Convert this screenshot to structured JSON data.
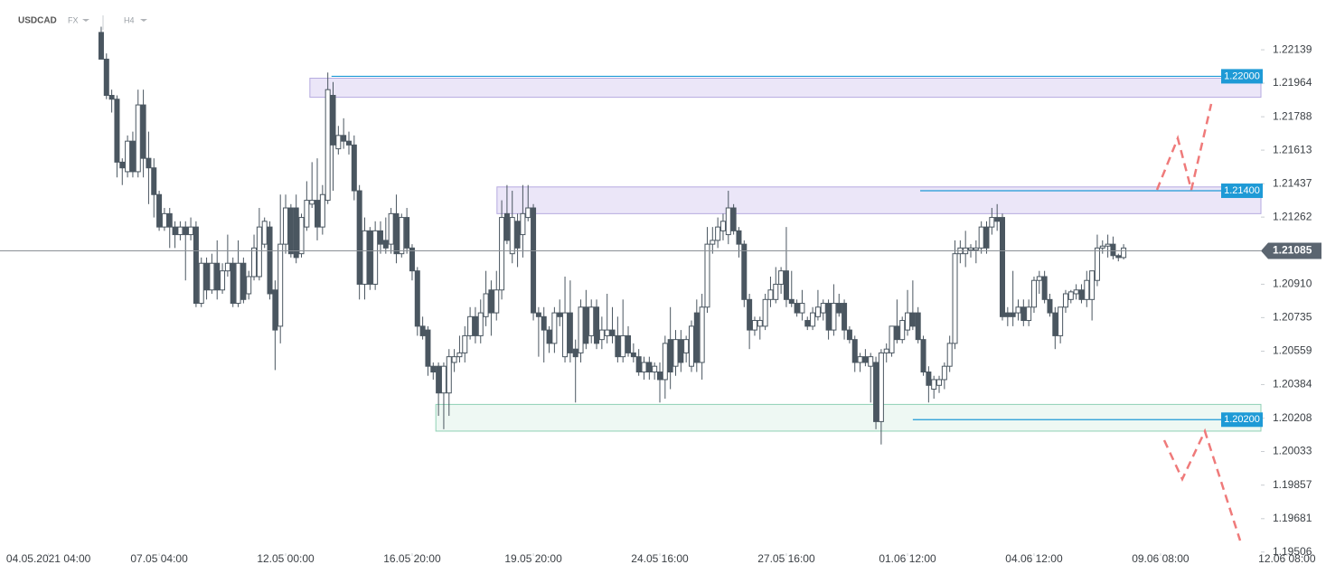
{
  "chart_data": {
    "type": "candlestick",
    "symbol": "USDCAD",
    "market": "FX",
    "timeframe": "H4",
    "up_color": "#ffffff",
    "down_color": "#4a5660",
    "wick_color": "#4a5660",
    "candles": [
      [
        1.2223,
        1.2226,
        1.2209,
        1.2209
      ],
      [
        1.2209,
        1.2212,
        1.2188,
        1.219
      ],
      [
        1.219,
        1.2193,
        1.2181,
        1.2188
      ],
      [
        1.2188,
        1.219,
        1.2147,
        1.2155
      ],
      [
        1.2155,
        1.2157,
        1.2143,
        1.2152
      ],
      [
        1.215,
        1.2169,
        1.2147,
        1.2166
      ],
      [
        1.2166,
        1.2171,
        1.2147,
        1.215
      ],
      [
        1.215,
        1.2193,
        1.2147,
        1.2185
      ],
      [
        1.2185,
        1.2193,
        1.2147,
        1.2157
      ],
      [
        1.2157,
        1.2171,
        1.2133,
        1.2152
      ],
      [
        1.2152,
        1.2157,
        1.2126,
        1.2138
      ],
      [
        1.2138,
        1.214,
        1.2119,
        1.2121
      ],
      [
        1.2121,
        1.2131,
        1.2119,
        1.2128
      ],
      [
        1.2128,
        1.2131,
        1.211,
        1.2121
      ],
      [
        1.2121,
        1.2124,
        1.211,
        1.2117
      ],
      [
        1.2117,
        1.2124,
        1.2114,
        1.2121
      ],
      [
        1.2121,
        1.2124,
        1.2093,
        1.2117
      ],
      [
        1.2117,
        1.2126,
        1.2114,
        1.2121
      ],
      [
        1.2121,
        1.2124,
        1.2079,
        1.2081
      ],
      [
        1.2081,
        1.2105,
        1.2079,
        1.2102
      ],
      [
        1.2102,
        1.2105,
        1.2083,
        1.2088
      ],
      [
        1.2088,
        1.2107,
        1.2086,
        1.2102
      ],
      [
        1.2102,
        1.2114,
        1.2083,
        1.2088
      ],
      [
        1.2088,
        1.2102,
        1.2086,
        1.2098
      ],
      [
        1.2098,
        1.2117,
        1.2095,
        1.2102
      ],
      [
        1.2102,
        1.2105,
        1.2079,
        1.2081
      ],
      [
        1.2081,
        1.2114,
        1.2079,
        1.2102
      ],
      [
        1.2102,
        1.2105,
        1.2081,
        1.2083
      ],
      [
        1.2086,
        1.2098,
        1.2083,
        1.2095
      ],
      [
        1.2095,
        1.2117,
        1.2093,
        1.211
      ],
      [
        1.2095,
        1.2131,
        1.2093,
        1.2121
      ],
      [
        1.2112,
        1.2126,
        1.211,
        1.2124
      ],
      [
        1.2121,
        1.2124,
        1.2083,
        1.2086
      ],
      [
        1.2088,
        1.2093,
        1.2046,
        1.2067
      ],
      [
        1.2069,
        1.2138,
        1.206,
        1.2112
      ],
      [
        1.2112,
        1.2138,
        1.2107,
        1.2131
      ],
      [
        1.2131,
        1.2133,
        1.2105,
        1.2107
      ],
      [
        1.2131,
        1.2138,
        1.2102,
        1.2105
      ],
      [
        1.2107,
        1.2128,
        1.2105,
        1.2126
      ],
      [
        1.2121,
        1.2145,
        1.2119,
        1.2135
      ],
      [
        1.2133,
        1.2155,
        1.2131,
        1.2135
      ],
      [
        1.2135,
        1.2157,
        1.2114,
        1.2121
      ],
      [
        1.2121,
        1.2143,
        1.2117,
        1.2138
      ],
      [
        1.2135,
        1.2202,
        1.2133,
        1.2193
      ],
      [
        1.219,
        1.2197,
        1.214,
        1.2164
      ],
      [
        1.2162,
        1.2174,
        1.2159,
        1.2169
      ],
      [
        1.2169,
        1.2178,
        1.2162,
        1.2166
      ],
      [
        1.2166,
        1.2171,
        1.2159,
        1.2164
      ],
      [
        1.2164,
        1.2169,
        1.2135,
        1.214
      ],
      [
        1.214,
        1.2143,
        1.2083,
        1.2091
      ],
      [
        1.2091,
        1.2126,
        1.2083,
        1.2119
      ],
      [
        1.2119,
        1.2121,
        1.2088,
        1.2091
      ],
      [
        1.2091,
        1.2124,
        1.2088,
        1.2119
      ],
      [
        1.2119,
        1.2124,
        1.2107,
        1.2112
      ],
      [
        1.2114,
        1.2126,
        1.2107,
        1.211
      ],
      [
        1.2112,
        1.2131,
        1.2107,
        1.2128
      ],
      [
        1.2128,
        1.2138,
        1.2102,
        1.2107
      ],
      [
        1.2107,
        1.2128,
        1.2105,
        1.2126
      ],
      [
        1.2126,
        1.2131,
        1.2107,
        1.211
      ],
      [
        1.211,
        1.2112,
        1.2093,
        1.2098
      ],
      [
        1.2098,
        1.21,
        1.2064,
        1.2069
      ],
      [
        1.2069,
        1.2074,
        1.2062,
        1.2064
      ],
      [
        1.2067,
        1.2069,
        1.2043,
        1.2048
      ],
      [
        1.2048,
        1.205,
        1.2041,
        1.2045
      ],
      [
        1.2048,
        1.205,
        1.2022,
        1.2034
      ],
      [
        1.2034,
        1.205,
        1.2015,
        1.2048
      ],
      [
        1.2034,
        1.2057,
        1.2022,
        1.2053
      ],
      [
        1.205,
        1.2057,
        1.2045,
        1.2053
      ],
      [
        1.2053,
        1.2064,
        1.205,
        1.2055
      ],
      [
        1.2055,
        1.2069,
        1.205,
        1.2064
      ],
      [
        1.2064,
        1.2079,
        1.2062,
        1.2074
      ],
      [
        1.2074,
        1.2079,
        1.206,
        1.2064
      ],
      [
        1.2064,
        1.2083,
        1.206,
        1.2076
      ],
      [
        1.2074,
        1.2098,
        1.2069,
        1.2086
      ],
      [
        1.2088,
        1.2093,
        1.2064,
        1.2076
      ],
      [
        1.2076,
        1.2098,
        1.2072,
        1.2088
      ],
      [
        1.2088,
        1.2135,
        1.2083,
        1.2126
      ],
      [
        1.2128,
        1.2143,
        1.2112,
        1.2114
      ],
      [
        1.2107,
        1.214,
        1.2102,
        1.2126
      ],
      [
        1.2124,
        1.2128,
        1.21,
        1.211
      ],
      [
        1.2117,
        1.2143,
        1.2105,
        1.2128
      ],
      [
        1.2126,
        1.2143,
        1.2124,
        1.2131
      ],
      [
        1.2131,
        1.2133,
        1.2072,
        1.2076
      ],
      [
        1.2076,
        1.2079,
        1.2053,
        1.2074
      ],
      [
        1.2074,
        1.2079,
        1.205,
        1.2067
      ],
      [
        1.2067,
        1.2069,
        1.2055,
        1.206
      ],
      [
        1.206,
        1.2079,
        1.2055,
        1.2076
      ],
      [
        1.2076,
        1.2083,
        1.2069,
        1.2074
      ],
      [
        1.2053,
        1.2095,
        1.205,
        1.2076
      ],
      [
        1.2076,
        1.2093,
        1.205,
        1.2055
      ],
      [
        1.2057,
        1.2062,
        1.2029,
        1.2053
      ],
      [
        1.2055,
        1.2083,
        1.205,
        1.2079
      ],
      [
        1.2079,
        1.2088,
        1.2057,
        1.206
      ],
      [
        1.2064,
        1.2083,
        1.206,
        1.2079
      ],
      [
        1.2079,
        1.2083,
        1.2057,
        1.206
      ],
      [
        1.2062,
        1.2074,
        1.2057,
        1.2067
      ],
      [
        1.2064,
        1.2086,
        1.206,
        1.2067
      ],
      [
        1.2067,
        1.2079,
        1.206,
        1.2064
      ],
      [
        1.2064,
        1.2074,
        1.205,
        1.2053
      ],
      [
        1.2053,
        1.2083,
        1.205,
        1.2064
      ],
      [
        1.2064,
        1.2069,
        1.2053,
        1.2055
      ],
      [
        1.2055,
        1.206,
        1.205,
        1.2053
      ],
      [
        1.2053,
        1.2057,
        1.2043,
        1.2045
      ],
      [
        1.2045,
        1.2053,
        1.2041,
        1.205
      ],
      [
        1.205,
        1.2053,
        1.2041,
        1.2045
      ],
      [
        1.2045,
        1.205,
        1.2041,
        1.2048
      ],
      [
        1.2045,
        1.205,
        1.2029,
        1.2041
      ],
      [
        1.2041,
        1.2064,
        1.2031,
        1.206
      ],
      [
        1.2062,
        1.2079,
        1.2036,
        1.2045
      ],
      [
        1.2048,
        1.2067,
        1.2043,
        1.2062
      ],
      [
        1.2062,
        1.2067,
        1.2045,
        1.205
      ],
      [
        1.2055,
        1.2064,
        1.205,
        1.2062
      ],
      [
        1.2048,
        1.2072,
        1.2045,
        1.2069
      ],
      [
        1.2076,
        1.2083,
        1.2045,
        1.205
      ],
      [
        1.205,
        1.2086,
        1.2041,
        1.2079
      ],
      [
        1.2079,
        1.2121,
        1.2076,
        1.2112
      ],
      [
        1.2112,
        1.2121,
        1.2107,
        1.2114
      ],
      [
        1.2114,
        1.2126,
        1.211,
        1.2121
      ],
      [
        1.2119,
        1.2128,
        1.2114,
        1.2124
      ],
      [
        1.2117,
        1.214,
        1.2112,
        1.2131
      ],
      [
        1.2131,
        1.2133,
        1.2117,
        1.2119
      ],
      [
        1.2119,
        1.2121,
        1.2105,
        1.2112
      ],
      [
        1.2112,
        1.2114,
        1.2079,
        1.2083
      ],
      [
        1.2083,
        1.2086,
        1.2057,
        1.2067
      ],
      [
        1.2067,
        1.2074,
        1.2064,
        1.2072
      ],
      [
        1.2069,
        1.2074,
        1.2062,
        1.2072
      ],
      [
        1.2069,
        1.2086,
        1.2067,
        1.2083
      ],
      [
        1.2083,
        1.2095,
        1.2079,
        1.2088
      ],
      [
        1.2083,
        1.21,
        1.2081,
        1.2091
      ],
      [
        1.2091,
        1.21,
        1.2086,
        1.2098
      ],
      [
        1.2098,
        1.2121,
        1.2079,
        1.2083
      ],
      [
        1.2083,
        1.2098,
        1.2079,
        1.2081
      ],
      [
        1.2081,
        1.2083,
        1.2074,
        1.2076
      ],
      [
        1.2076,
        1.2088,
        1.2072,
        1.2081
      ],
      [
        1.2072,
        1.2074,
        1.2067,
        1.2069
      ],
      [
        1.2069,
        1.2079,
        1.2067,
        1.2076
      ],
      [
        1.2074,
        1.2088,
        1.2072,
        1.2079
      ],
      [
        1.2076,
        1.2083,
        1.2072,
        1.2081
      ],
      [
        1.2081,
        1.2083,
        1.2062,
        1.2067
      ],
      [
        1.2067,
        1.2091,
        1.2064,
        1.2081
      ],
      [
        1.2081,
        1.2086,
        1.2074,
        1.2076
      ],
      [
        1.2081,
        1.2083,
        1.2062,
        1.2067
      ],
      [
        1.2067,
        1.2069,
        1.206,
        1.2062
      ],
      [
        1.2062,
        1.2064,
        1.2045,
        1.205
      ],
      [
        1.205,
        1.2055,
        1.2045,
        1.2053
      ],
      [
        1.2053,
        1.2057,
        1.2048,
        1.205
      ],
      [
        1.2048,
        1.2055,
        1.2029,
        1.2053
      ],
      [
        1.205,
        1.2053,
        1.2015,
        1.2019
      ],
      [
        1.2019,
        1.2057,
        1.2007,
        1.2055
      ],
      [
        1.2055,
        1.206,
        1.205,
        1.2057
      ],
      [
        1.2055,
        1.2069,
        1.2053,
        1.2069
      ],
      [
        1.2069,
        1.2083,
        1.206,
        1.2062
      ],
      [
        1.2062,
        1.2074,
        1.206,
        1.2072
      ],
      [
        1.2067,
        1.2088,
        1.2064,
        1.2076
      ],
      [
        1.2076,
        1.2093,
        1.2067,
        1.2069
      ],
      [
        1.2076,
        1.2079,
        1.206,
        1.2062
      ],
      [
        1.2062,
        1.2064,
        1.2043,
        1.2045
      ],
      [
        1.2045,
        1.2048,
        1.2029,
        1.2038
      ],
      [
        1.2036,
        1.2043,
        1.2031,
        1.2041
      ],
      [
        1.2038,
        1.2043,
        1.2034,
        1.2041
      ],
      [
        1.2041,
        1.205,
        1.2036,
        1.2048
      ],
      [
        1.2048,
        1.2064,
        1.2045,
        1.206
      ],
      [
        1.206,
        1.2114,
        1.2057,
        1.2107
      ],
      [
        1.2107,
        1.2114,
        1.2102,
        1.211
      ],
      [
        1.2107,
        1.2119,
        1.21,
        1.211
      ],
      [
        1.2109,
        1.2112,
        1.2105,
        1.211
      ],
      [
        1.2109,
        1.2114,
        1.2102,
        1.211
      ],
      [
        1.211,
        1.2124,
        1.2107,
        1.2121
      ],
      [
        1.2121,
        1.2124,
        1.2107,
        1.211
      ],
      [
        1.2121,
        1.2131,
        1.2117,
        1.2126
      ],
      [
        1.2126,
        1.2133,
        1.2119,
        1.2124
      ],
      [
        1.2126,
        1.2128,
        1.2072,
        1.2074
      ],
      [
        1.2076,
        1.2079,
        1.2069,
        1.2074
      ],
      [
        1.2076,
        1.2098,
        1.2069,
        1.2074
      ],
      [
        1.2076,
        1.2083,
        1.2072,
        1.2079
      ],
      [
        1.2079,
        1.2083,
        1.2069,
        1.2072
      ],
      [
        1.2072,
        1.2083,
        1.2069,
        1.2079
      ],
      [
        1.2079,
        1.2095,
        1.2076,
        1.2093
      ],
      [
        1.2093,
        1.2098,
        1.2086,
        1.2095
      ],
      [
        1.2095,
        1.2098,
        1.2081,
        1.2083
      ],
      [
        1.2083,
        1.2086,
        1.2074,
        1.2076
      ],
      [
        1.2076,
        1.2079,
        1.2057,
        1.2064
      ],
      [
        1.2064,
        1.2079,
        1.206,
        1.2079
      ],
      [
        1.2079,
        1.2088,
        1.2076,
        1.2086
      ],
      [
        1.2083,
        1.2088,
        1.2081,
        1.2087
      ],
      [
        1.2086,
        1.2091,
        1.2083,
        1.2088
      ],
      [
        1.2088,
        1.2091,
        1.2081,
        1.2083
      ],
      [
        1.2083,
        1.2098,
        1.2079,
        1.2093
      ],
      [
        1.2083,
        1.2098,
        1.2072,
        1.2098
      ],
      [
        1.2093,
        1.2117,
        1.209,
        1.211
      ],
      [
        1.211,
        1.2114,
        1.2107,
        1.2111
      ],
      [
        1.2111,
        1.2117,
        1.2105,
        1.2112
      ],
      [
        1.2112,
        1.2116,
        1.2104,
        1.2106
      ],
      [
        1.2106,
        1.2107,
        1.2103,
        1.2105
      ],
      [
        1.2105,
        1.2112,
        1.2104,
        1.211
      ]
    ],
    "xlim": [
      -19.2,
      232.4
    ],
    "xticks": [
      {
        "value": -10,
        "label": "04.05.2021 04:00"
      },
      {
        "value": 11,
        "label": "07.05 04:00"
      },
      {
        "value": 35,
        "label": "12.05 00:00"
      },
      {
        "value": 59,
        "label": "16.05 20:00"
      },
      {
        "value": 82,
        "label": "19.05 20:00"
      },
      {
        "value": 106,
        "label": "24.05 16:00"
      },
      {
        "value": 130,
        "label": "27.05 16:00"
      },
      {
        "value": 153,
        "label": "01.06 12:00"
      },
      {
        "value": 177,
        "label": "04.06 12:00"
      },
      {
        "value": 201,
        "label": "09.06 08:00"
      },
      {
        "value": 225,
        "label": "12.06 08:00"
      }
    ],
    "ylim": [
      1.195,
      1.224
    ],
    "yticks": [
      1.22139,
      1.21964,
      1.21788,
      1.21613,
      1.21437,
      1.21262,
      {
        "value": 1.2091,
        "label": "1.20910"
      },
      1.20735,
      1.20559,
      1.20384,
      1.20208,
      1.20033,
      1.19857,
      1.19681,
      1.19506
    ],
    "current_price": 1.21085,
    "zones": [
      {
        "from": 39.6,
        "range": [
          1.2189,
          1.2199
        ],
        "color": "#ebe6f8",
        "border": "#b5aae0"
      },
      {
        "from": 75.1,
        "range": [
          1.2128,
          1.2142
        ],
        "color": "#ebe6f8",
        "border": "#b5aae0"
      },
      {
        "from": 63.5,
        "range": [
          1.2014,
          1.2028
        ],
        "color": "#eef8f3",
        "border": "#8fd1b6"
      }
    ],
    "levels": [
      {
        "value": 1.22,
        "label": "1.22000",
        "from": 43.7
      },
      {
        "value": 1.214,
        "label": "1.21400",
        "from": 155.4
      },
      {
        "value": 1.202,
        "label": "1.20200",
        "from": 154
      }
    ],
    "level_color": "#1e9ad6"
  }
}
